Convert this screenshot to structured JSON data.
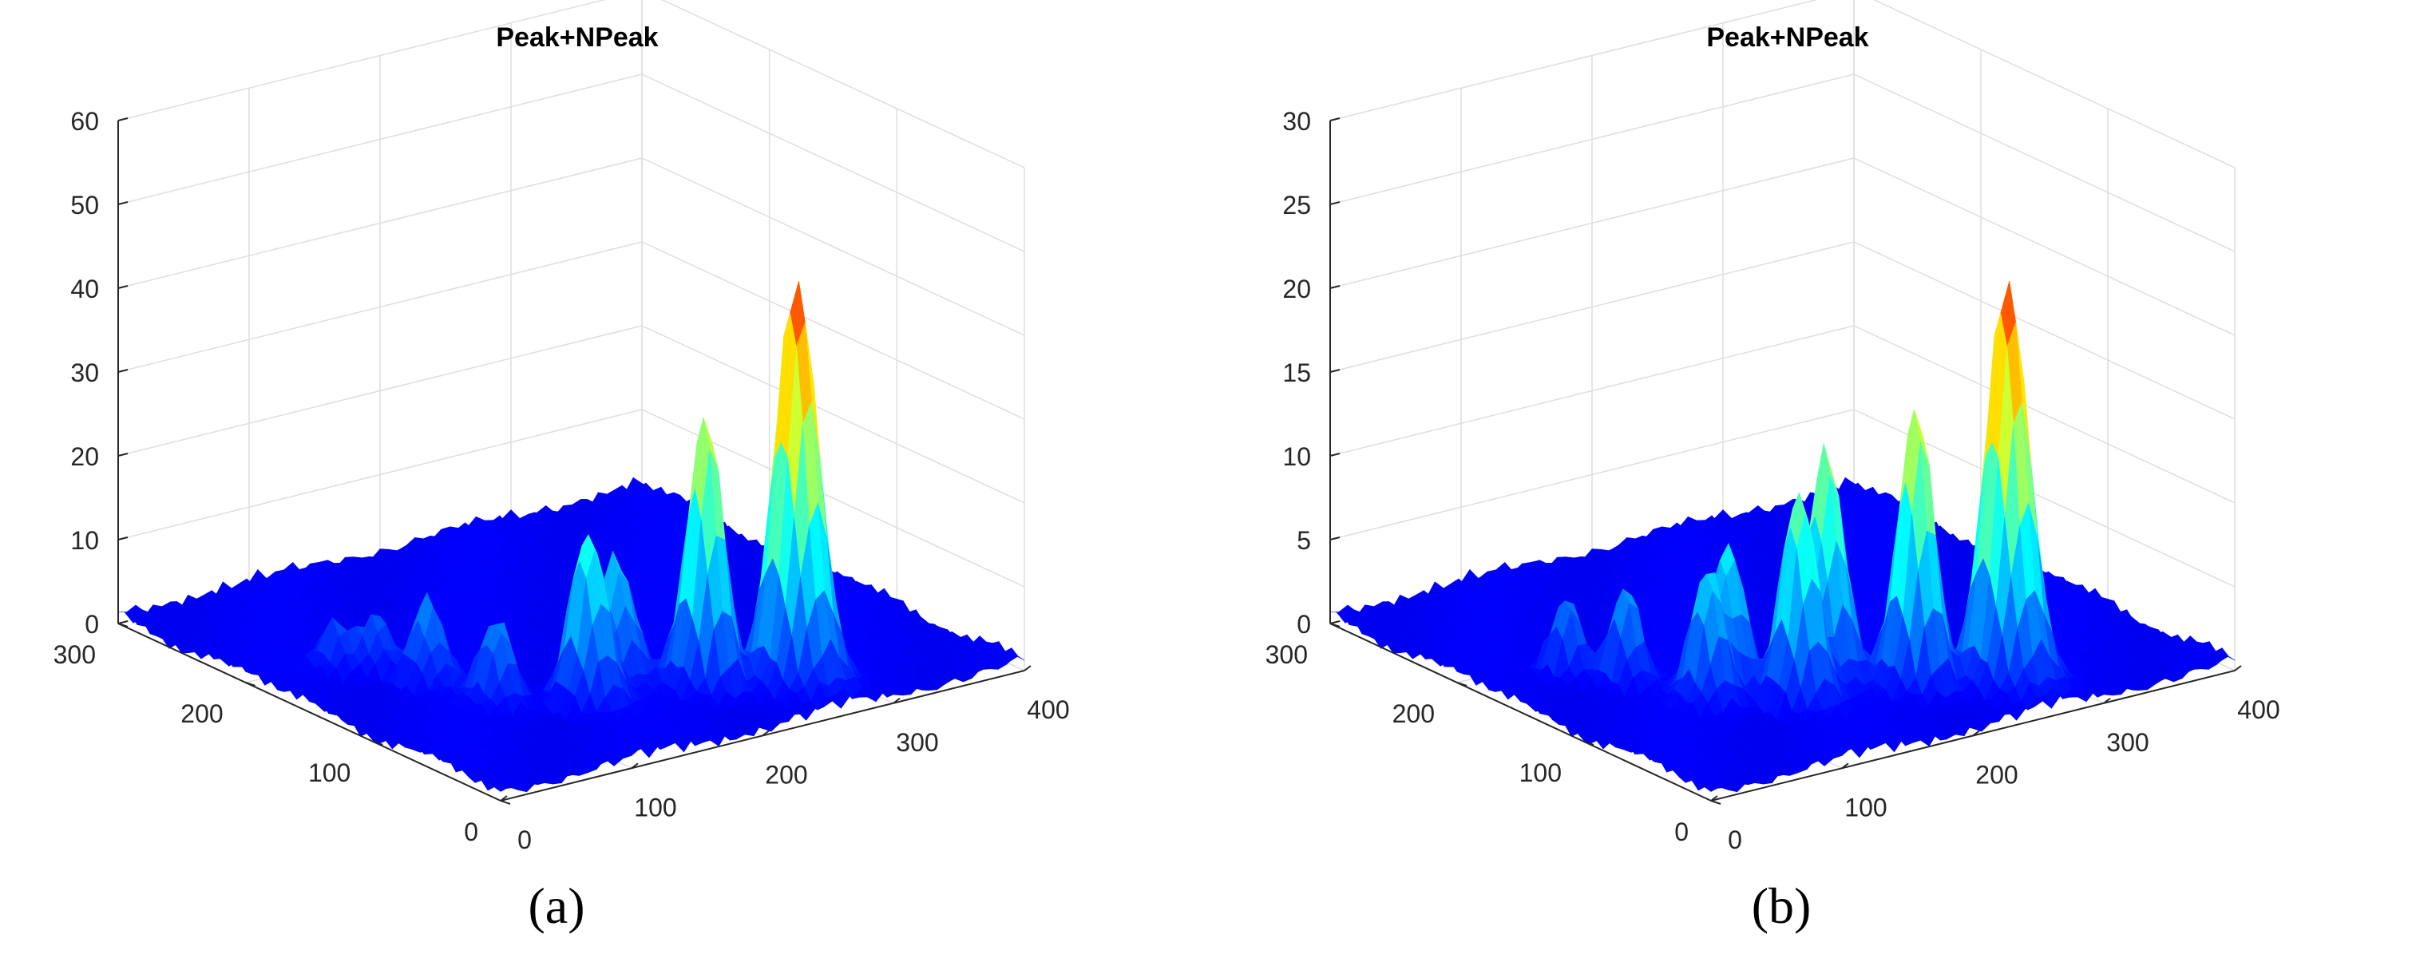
{
  "colors": {
    "axis": "#262626",
    "grid": "#dedede",
    "colormap": "jet"
  },
  "chart_data": [
    {
      "id": "a",
      "panel_label": "(a)",
      "type": "surface",
      "title": "Peak+NPeak",
      "xlim": [
        0,
        400
      ],
      "ylim": [
        0,
        300
      ],
      "zlim": [
        0,
        60
      ],
      "xticks": [
        0,
        100,
        200,
        300,
        400
      ],
      "yticks": [
        0,
        100,
        200,
        300
      ],
      "zticks": [
        0,
        10,
        20,
        30,
        40,
        50,
        60
      ],
      "grid": true,
      "noise_floor": 2,
      "peaks": [
        {
          "x": 265,
          "y": 40,
          "height": 48,
          "width": 12
        },
        {
          "x": 215,
          "y": 60,
          "height": 33,
          "width": 10
        },
        {
          "x": 140,
          "y": 75,
          "height": 21,
          "width": 10
        },
        {
          "x": 175,
          "y": 90,
          "height": 15,
          "width": 10
        },
        {
          "x": 95,
          "y": 100,
          "height": 10,
          "width": 9
        },
        {
          "x": 80,
          "y": 140,
          "height": 10,
          "width": 9
        },
        {
          "x": 70,
          "y": 170,
          "height": 7,
          "width": 8
        },
        {
          "x": 50,
          "y": 180,
          "height": 6,
          "width": 8
        }
      ]
    },
    {
      "id": "b",
      "panel_label": "(b)",
      "type": "surface",
      "title": "Peak+NPeak",
      "xlim": [
        0,
        400
      ],
      "ylim": [
        0,
        300
      ],
      "zlim": [
        0,
        30
      ],
      "xticks": [
        0,
        100,
        200,
        300,
        400
      ],
      "yticks": [
        0,
        100,
        200,
        300
      ],
      "zticks": [
        0,
        5,
        10,
        15,
        20,
        25,
        30
      ],
      "grid": true,
      "noise_floor": 1,
      "peaks": [
        {
          "x": 265,
          "y": 40,
          "height": 24,
          "width": 12
        },
        {
          "x": 215,
          "y": 60,
          "height": 17,
          "width": 10
        },
        {
          "x": 175,
          "y": 90,
          "height": 14,
          "width": 10
        },
        {
          "x": 140,
          "y": 75,
          "height": 13,
          "width": 10
        },
        {
          "x": 120,
          "y": 110,
          "height": 9,
          "width": 9
        },
        {
          "x": 95,
          "y": 100,
          "height": 8,
          "width": 9
        },
        {
          "x": 75,
          "y": 145,
          "height": 6,
          "width": 8
        },
        {
          "x": 55,
          "y": 170,
          "height": 5,
          "width": 8
        }
      ]
    }
  ]
}
